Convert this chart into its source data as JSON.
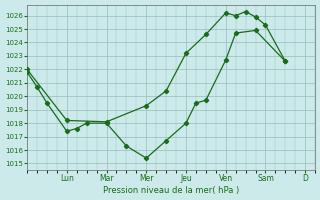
{
  "xlabel": "Pression niveau de la mer( hPa )",
  "bg_color": "#cceaea",
  "line_color": "#1a6b1a",
  "grid_color": "#99bbbb",
  "ylim_min": 1014.5,
  "ylim_max": 1026.8,
  "yticks": [
    1015,
    1016,
    1017,
    1018,
    1019,
    1020,
    1021,
    1022,
    1023,
    1024,
    1025,
    1026
  ],
  "day_labels": [
    "Lun",
    "Mar",
    "Mer",
    "Jeu",
    "Ven",
    "Sam",
    "D"
  ],
  "day_positions": [
    24,
    48,
    72,
    96,
    120,
    144,
    168
  ],
  "xlim_min": 0,
  "xlim_max": 174,
  "series1_x": [
    0,
    6,
    12,
    24,
    30,
    36,
    48,
    60,
    72,
    84,
    96,
    102,
    108,
    120,
    126,
    138,
    156
  ],
  "series1_y": [
    1021.8,
    1020.7,
    1019.5,
    1017.4,
    1017.6,
    1018.0,
    1018.0,
    1016.3,
    1015.4,
    1016.7,
    1018.0,
    1019.5,
    1019.7,
    1022.7,
    1024.7,
    1024.9,
    1022.6
  ],
  "series2_x": [
    0,
    24,
    48,
    72,
    84,
    96,
    108,
    120,
    126,
    132,
    138,
    144,
    156
  ],
  "series2_y": [
    1022.0,
    1018.2,
    1018.1,
    1019.3,
    1020.4,
    1023.2,
    1024.6,
    1026.2,
    1026.0,
    1026.3,
    1025.9,
    1025.3,
    1022.6
  ],
  "figwidth": 3.2,
  "figheight": 2.0,
  "dpi": 100
}
